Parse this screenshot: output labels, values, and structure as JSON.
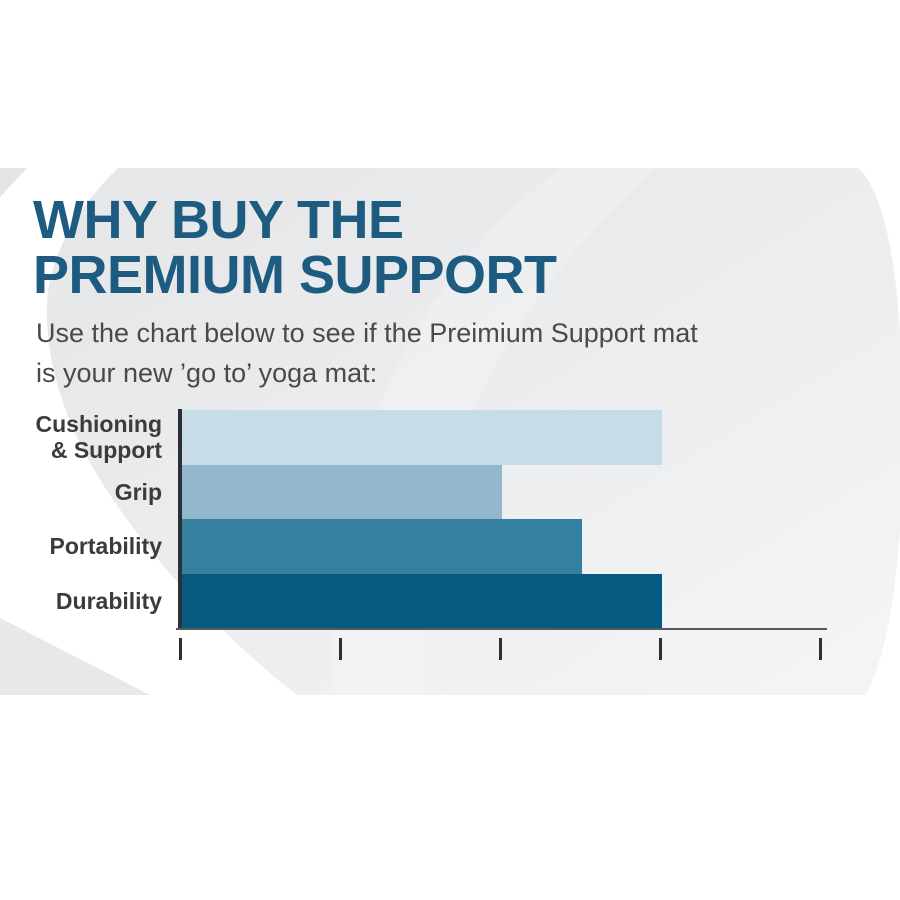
{
  "header": {
    "title_line1": "WHY BUY THE",
    "title_line2": "PREMIUM SUPPORT",
    "subtitle_line1": "Use the chart below to see if the Preimium Support mat",
    "subtitle_line2": "is your new ’go to’ yoga mat:"
  },
  "colors": {
    "title": "#1e5b80",
    "subtitle": "#4a4a4c",
    "category_labels": "#3b3b3d",
    "x_axis_line": "#58595b",
    "y_axis_line": "#2b3036",
    "tick": "#2e2f31",
    "band_gray_dark": "#e5e6e8",
    "band_gray_light": "#f4f5f6",
    "page_background": "#ffffff"
  },
  "chart_data": {
    "type": "bar",
    "orientation": "horizontal",
    "title": "WHY BUY THE PREMIUM SUPPORT",
    "xlabel": "",
    "ylabel": "",
    "categories": [
      "Cushioning & Support",
      "Grip",
      "Portability",
      "Durability"
    ],
    "category_label_lines": [
      [
        "Cushioning",
        "& Support"
      ],
      [
        "Grip"
      ],
      [
        "Portability"
      ],
      [
        "Durability"
      ]
    ],
    "values": [
      3,
      2,
      2.5,
      3
    ],
    "xlim": [
      0,
      4
    ],
    "x_ticks": [
      0,
      1,
      2,
      3,
      4
    ],
    "x_tick_labels": [
      "",
      "",
      "",
      "",
      ""
    ],
    "bar_colors": [
      "#c8dce7",
      "#93b8cb",
      "#35809f",
      "#045a80"
    ],
    "bars_contiguous": true,
    "grid": false,
    "legend": false
  }
}
